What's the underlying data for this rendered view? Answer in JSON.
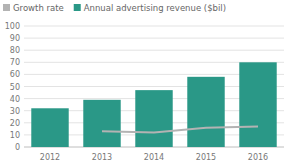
{
  "chart_data": {
    "type": "bar",
    "categories": [
      "2012",
      "2013",
      "2014",
      "2015",
      "2016"
    ],
    "series": [
      {
        "name": "Growth rate",
        "type": "line",
        "color": "#b3b3b3",
        "values": [
          null,
          13,
          12,
          16,
          17
        ]
      },
      {
        "name": "Annual advertising revenue ($bil)",
        "type": "bar",
        "color": "#2a9887",
        "values": [
          32,
          39,
          47,
          58,
          70
        ]
      }
    ],
    "ylim": [
      0,
      100
    ],
    "yticks": [
      0,
      10,
      20,
      30,
      40,
      50,
      60,
      70,
      80,
      90,
      100
    ],
    "grid": true,
    "legend": "top-left"
  }
}
